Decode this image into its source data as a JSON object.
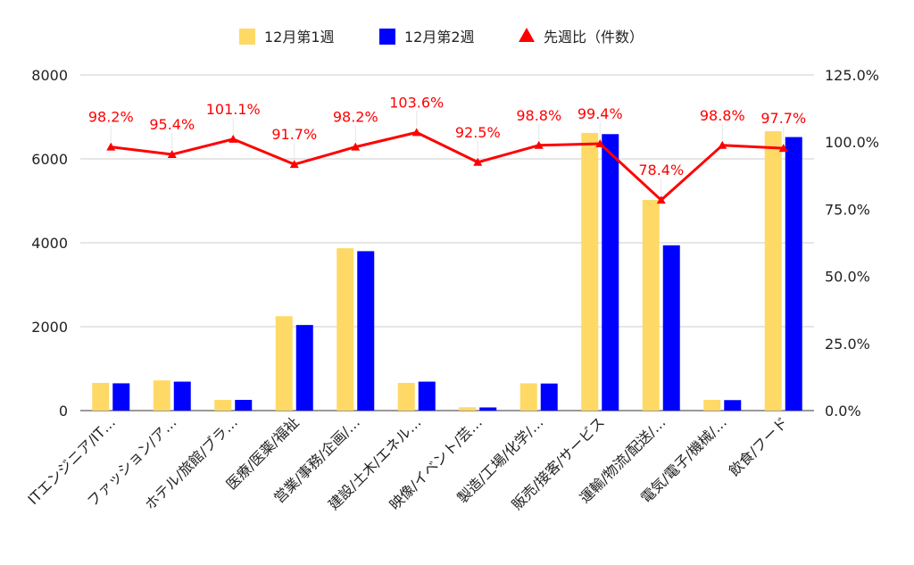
{
  "chart_data": {
    "type": "bar",
    "title": "",
    "categories": [
      "ITエンジニア/IT…",
      "ファッション/ア…",
      "ホテル/旅館/ブラ…",
      "医療/医薬/福祉",
      "営業/事務/企画/…",
      "建設/土木/エネル…",
      "映像/イベント/芸…",
      "製造/工場/化学/…",
      "販売/接客/サービス",
      "運輸/物流/配送/…",
      "電気/電子/機械/…",
      "飲食/フード"
    ],
    "series": [
      {
        "name": "12月第1週",
        "type": "bar",
        "axis": "left",
        "color": "#ffd966",
        "values": [
          660,
          720,
          255,
          2250,
          3870,
          660,
          80,
          650,
          6620,
          5020,
          255,
          6660
        ]
      },
      {
        "name": "12月第2週",
        "type": "bar",
        "axis": "left",
        "color": "#0000ff",
        "values": [
          650,
          690,
          255,
          2040,
          3800,
          690,
          75,
          645,
          6590,
          3940,
          250,
          6520
        ]
      },
      {
        "name": "先週比（件数）",
        "type": "line",
        "axis": "right",
        "color": "#ff0000",
        "marker": "triangle",
        "values": [
          98.2,
          95.4,
          101.1,
          91.7,
          98.2,
          103.6,
          92.5,
          98.8,
          99.4,
          78.4,
          98.8,
          97.7
        ],
        "labels": [
          "98.2%",
          "95.4%",
          "101.1%",
          "91.7%",
          "98.2%",
          "103.6%",
          "92.5%",
          "98.8%",
          "99.4%",
          "78.4%",
          "98.8%",
          "97.7%"
        ]
      }
    ],
    "y_left": {
      "min": 0,
      "max": 8000,
      "ticks": [
        "0",
        "2000",
        "4000",
        "6000",
        "8000"
      ]
    },
    "y_right": {
      "min": 0,
      "max": 125,
      "ticks": [
        "0.0%",
        "25.0%",
        "50.0%",
        "75.0%",
        "100.0%",
        "125.0%"
      ]
    },
    "grid": true,
    "legend": "top"
  }
}
